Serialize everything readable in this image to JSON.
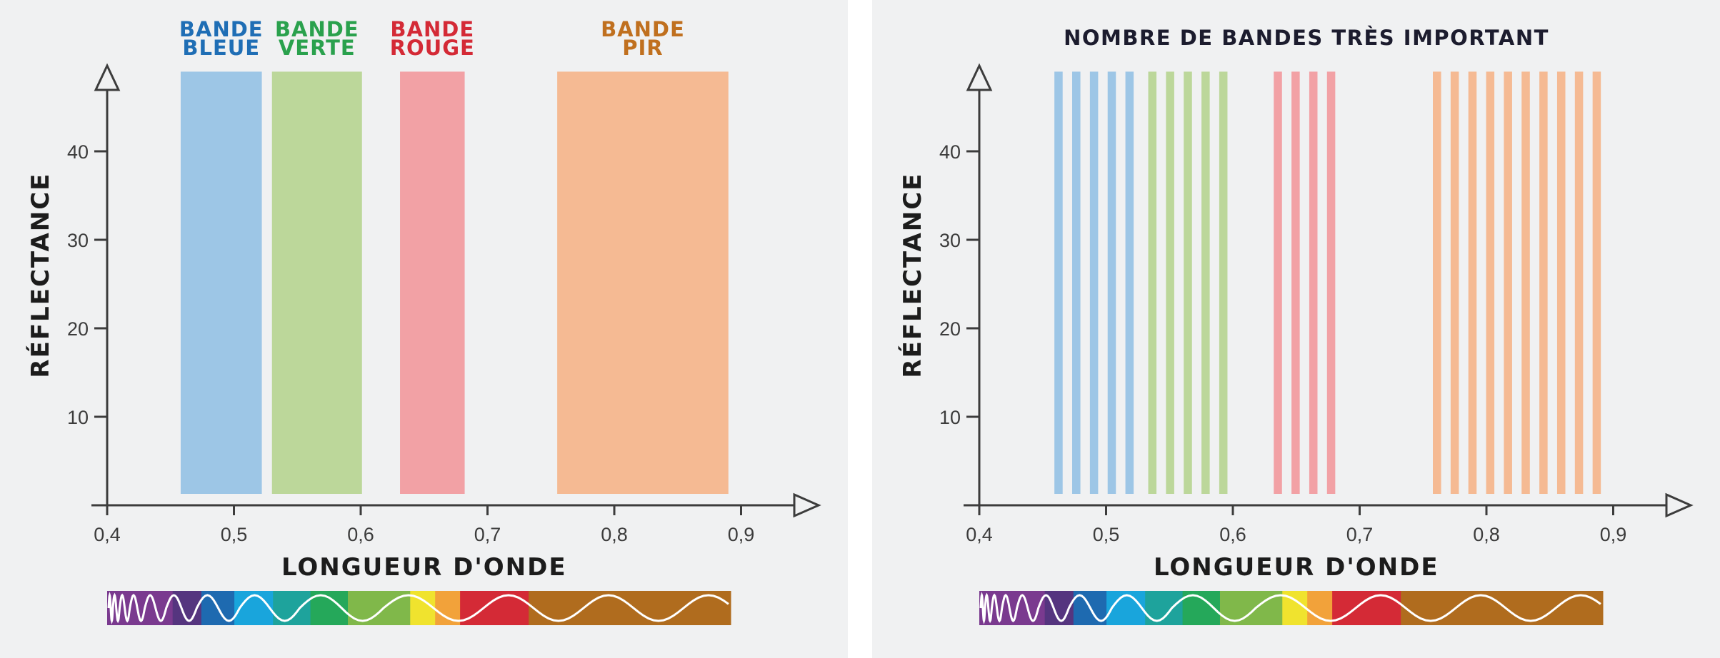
{
  "chart_data": [
    {
      "type": "bar",
      "title": "",
      "xlabel": "LONGUEUR D'ONDE",
      "ylabel": "RÉFLECTANCE",
      "x_ticks": [
        "0,4",
        "0,5",
        "0,6",
        "0,7",
        "0,8",
        "0,9"
      ],
      "y_ticks": [
        "10",
        "20",
        "30",
        "40"
      ],
      "xlim": [
        0.4,
        0.96
      ],
      "ylim": [
        0,
        50
      ],
      "bands": [
        {
          "line1": "BANDE",
          "line2": "BLEUE",
          "start": 0.458,
          "end": 0.522,
          "color": "#9dc6e6",
          "label_color": "#1f6eb5"
        },
        {
          "line1": "BANDE",
          "line2": "VERTE",
          "start": 0.53,
          "end": 0.601,
          "color": "#bcd79a",
          "label_color": "#2aa14d"
        },
        {
          "line1": "BANDE",
          "line2": "ROUGE",
          "start": 0.631,
          "end": 0.682,
          "color": "#f2a1a5",
          "label_color": "#d42a36"
        },
        {
          "line1": "BANDE",
          "line2": "PIR",
          "start": 0.755,
          "end": 0.89,
          "color": "#f5ba93",
          "label_color": "#c0701f"
        }
      ],
      "band_top": 49
    },
    {
      "type": "bar",
      "title": "NOMBRE DE BANDES TRÈS IMPORTANT",
      "xlabel": "LONGUEUR D'ONDE",
      "ylabel": "RÉFLECTANCE",
      "x_ticks": [
        "0,4",
        "0,5",
        "0,6",
        "0,7",
        "0,8",
        "0,9"
      ],
      "y_ticks": [
        "10",
        "20",
        "30",
        "40"
      ],
      "xlim": [
        0.4,
        0.96
      ],
      "ylim": [
        0,
        50
      ],
      "band_top": 49,
      "narrow_bands": [
        {
          "color": "#9dc6e6",
          "centers": [
            0.4625,
            0.4765,
            0.4905,
            0.5045,
            0.5185
          ]
        },
        {
          "color": "#bcd79a",
          "centers": [
            0.5365,
            0.5505,
            0.5645,
            0.5785,
            0.5925
          ]
        },
        {
          "color": "#f2a1a5",
          "centers": [
            0.6355,
            0.6495,
            0.6635,
            0.6775
          ]
        },
        {
          "color": "#f5ba93",
          "centers": [
            0.761,
            0.775,
            0.789,
            0.803,
            0.817,
            0.831,
            0.845,
            0.859,
            0.873,
            0.887
          ]
        }
      ],
      "narrow_width": 0.0065
    }
  ],
  "spectrum_colors": [
    "#7a3a8f",
    "#55357f",
    "#1e6ab0",
    "#19a5dc",
    "#1ea39c",
    "#25a85a",
    "#80b84a",
    "#f0e32e",
    "#f2a23a",
    "#d42a36",
    "#b06c1e"
  ]
}
